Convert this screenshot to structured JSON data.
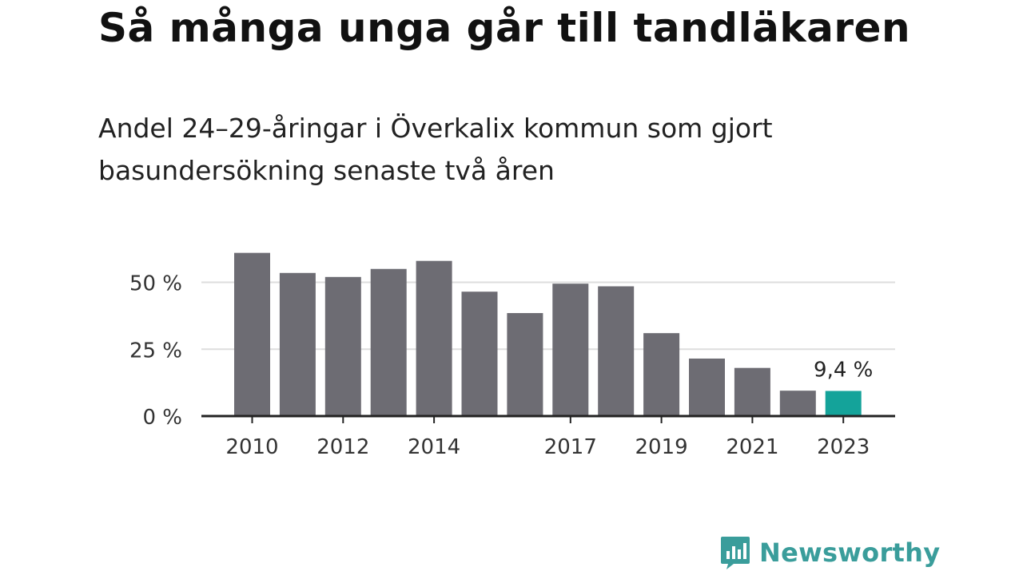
{
  "title": "Så många unga går till tandläkaren",
  "subtitle": "Andel 24–29-åringar i Överkalix kommun som gjort basundersökning senaste två åren",
  "brand": {
    "name": "Newsworthy",
    "icon": "bar-chart-speech-bubble-icon",
    "color": "#3a9d9b"
  },
  "colors": {
    "bar": "#6d6c73",
    "highlight": "#14a39a",
    "grid": "#dddddd",
    "axis": "#222222"
  },
  "chart_data": {
    "type": "bar",
    "categories": [
      "2010",
      "2011",
      "2012",
      "2013",
      "2014",
      "2015",
      "2016",
      "2017",
      "2018",
      "2019",
      "2020",
      "2021",
      "2022",
      "2023"
    ],
    "values": [
      61,
      53.5,
      52,
      55,
      58,
      46.5,
      38.5,
      49.5,
      48.5,
      31,
      21.5,
      18,
      9.5,
      9.4
    ],
    "x_tick_labels": [
      "2010",
      "",
      "2012",
      "",
      "2014",
      "",
      "",
      "2017",
      "",
      "2019",
      "",
      "2021",
      "",
      "2023"
    ],
    "y_ticks": [
      0,
      25,
      50
    ],
    "y_tick_labels": [
      "0 %",
      "25 %",
      "50 %"
    ],
    "ylim": [
      0,
      62
    ],
    "highlight_index": 13,
    "annotations": [
      {
        "index": 13,
        "text": "9,4 %"
      }
    ],
    "grid": true,
    "legend": "none"
  }
}
